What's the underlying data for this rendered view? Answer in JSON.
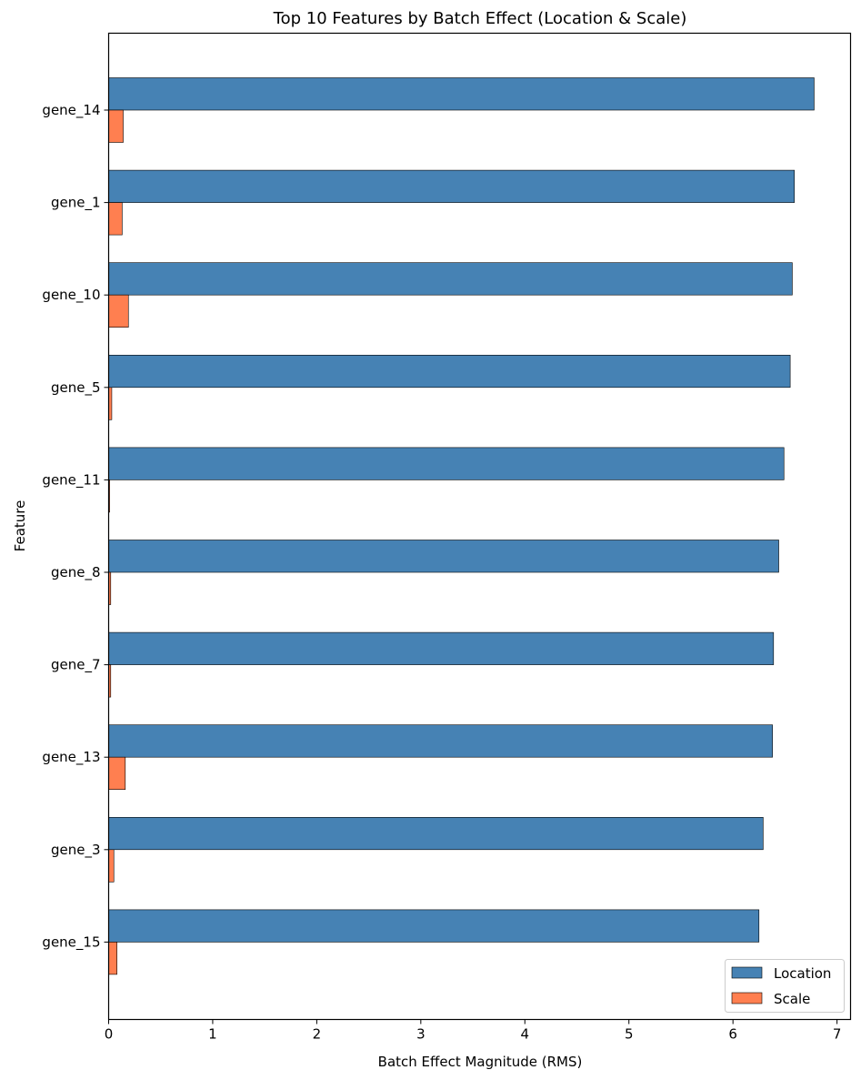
{
  "chart_data": {
    "type": "bar",
    "orientation": "horizontal",
    "title": "Top 10 Features by Batch Effect (Location & Scale)",
    "xlabel": "Batch Effect Magnitude (RMS)",
    "ylabel": "Feature",
    "xlim": [
      0,
      7.13
    ],
    "xticks": [
      "0",
      "1",
      "2",
      "3",
      "4",
      "5",
      "6",
      "7"
    ],
    "categories": [
      "gene_14",
      "gene_1",
      "gene_10",
      "gene_5",
      "gene_11",
      "gene_8",
      "gene_7",
      "gene_13",
      "gene_3",
      "gene_15"
    ],
    "series": [
      {
        "name": "Location",
        "color": "#4682b4",
        "values": [
          6.78,
          6.59,
          6.57,
          6.55,
          6.49,
          6.44,
          6.39,
          6.38,
          6.29,
          6.25
        ]
      },
      {
        "name": "Scale",
        "color": "#ff7f50",
        "values": [
          0.14,
          0.13,
          0.19,
          0.03,
          0.01,
          0.02,
          0.02,
          0.16,
          0.05,
          0.08
        ]
      }
    ],
    "legend": {
      "position": "lower-right"
    },
    "grid": false
  }
}
